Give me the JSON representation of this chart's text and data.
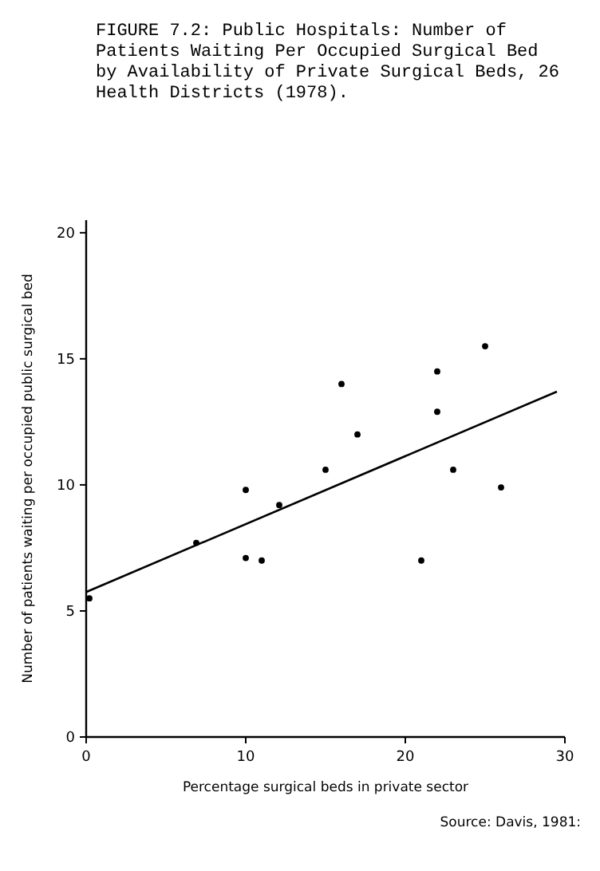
{
  "chart_data": {
    "type": "scatter",
    "title": "FIGURE 7.2: Public Hospitals: Number of Patients Waiting Per Occupied Surgical Bed by Availability of Private Surgical Beds, 26 Health Districts (1978).",
    "xlabel": "Percentage surgical beds in private sector",
    "ylabel": "Number of patients waiting per occupied public surgical bed",
    "annotations": [
      "Source: Davis, 1981:"
    ],
    "xlim": [
      0,
      30
    ],
    "ylim": [
      0,
      20.5
    ],
    "xticks": [
      0,
      10,
      20,
      30
    ],
    "yticks": [
      0,
      5,
      10,
      15,
      20
    ],
    "grid": false,
    "marker": "circle",
    "series": [
      {
        "color": "#000000",
        "x": [
          0.2,
          6.9,
          10,
          10,
          11,
          12.1,
          15,
          16,
          17,
          21,
          22,
          22,
          23,
          25,
          26
        ],
        "values": [
          5.5,
          7.7,
          9.8,
          7.1,
          7.0,
          9.2,
          10.6,
          14.0,
          12.0,
          7.0,
          12.9,
          14.5,
          10.6,
          15.5,
          9.9
        ]
      },
      {
        "type": "line",
        "color": "#000000",
        "line_style": "solid",
        "marker": "none",
        "x": [
          0,
          29.5
        ],
        "values": [
          5.75,
          13.7
        ]
      }
    ]
  }
}
